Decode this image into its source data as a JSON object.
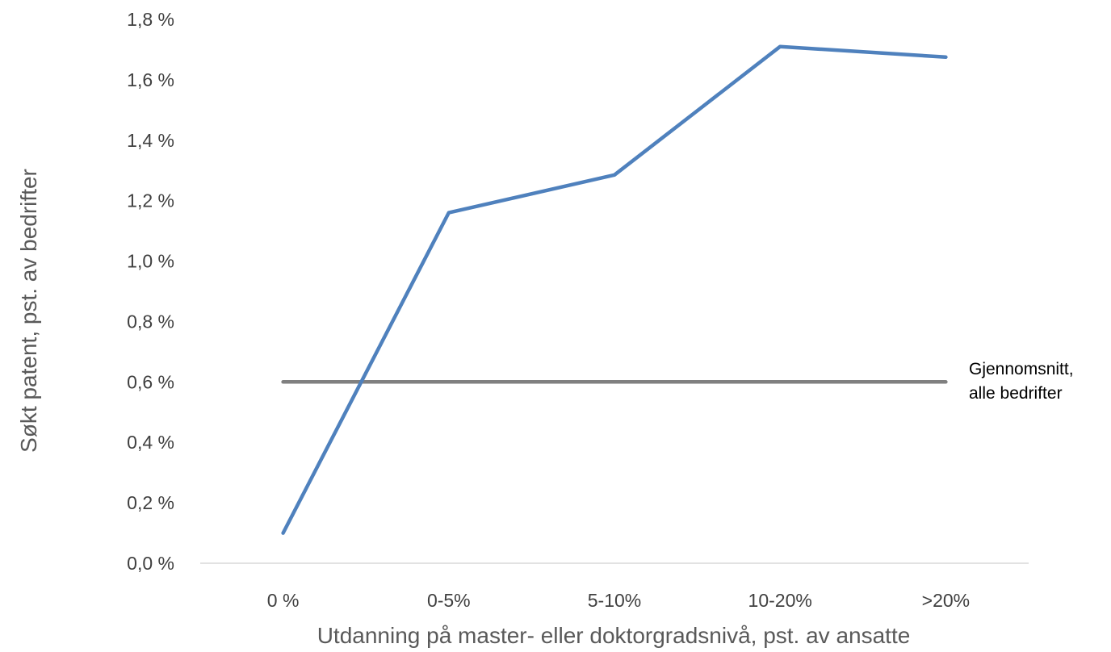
{
  "chart_data": {
    "type": "line",
    "title": "",
    "xlabel": "Utdanning på master- eller doktorgradsnivå, pst. av ansatte",
    "ylabel": "Søkt patent, pst. av bedrifter",
    "categories": [
      "0 %",
      "0-5%",
      "5-10%",
      "10-20%",
      ">20%"
    ],
    "yticks": [
      "0,0 %",
      "0,2 %",
      "0,4 %",
      "0,6 %",
      "0,8 %",
      "1,0 %",
      "1,2 %",
      "1,4 %",
      "1,6 %",
      "1,8 %"
    ],
    "ylim": [
      0,
      1.8
    ],
    "grid": false,
    "series": [
      {
        "values": [
          0.1,
          1.16,
          1.285,
          1.71,
          1.675
        ],
        "color": "#4f81bd"
      },
      {
        "values": [
          0.6,
          0.6,
          0.6,
          0.6,
          0.6
        ],
        "color": "#808080"
      }
    ],
    "annotation": {
      "line1": "Gjennomsnitt,",
      "line2": "alle bedrifter"
    }
  }
}
